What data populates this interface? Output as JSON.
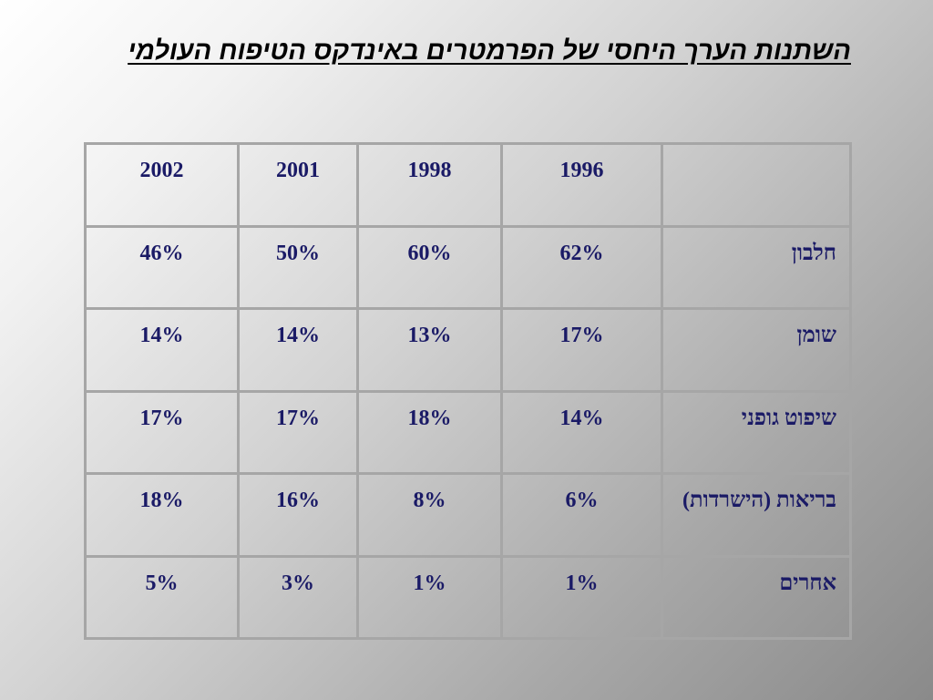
{
  "title": "השתנות הערך היחסי של הפרמטרים באינדקס הטיפוח העולמי",
  "table": {
    "headers": [
      "2002",
      "2001",
      "1998",
      "1996",
      ""
    ],
    "rows": [
      {
        "label": "חלבון",
        "values": [
          "46%",
          "50%",
          "60%",
          "62%"
        ]
      },
      {
        "label": "שומן",
        "values": [
          "14%",
          "14%",
          "13%",
          "17%"
        ]
      },
      {
        "label": "שיפוט גופני",
        "values": [
          "17%",
          "17%",
          "18%",
          "14%"
        ]
      },
      {
        "label": "בריאות (הישרדות)",
        "values": [
          "18%",
          "16%",
          "8%",
          "6%"
        ]
      },
      {
        "label": "אחרים",
        "values": [
          "5%",
          "3%",
          "1%",
          "1%"
        ]
      }
    ]
  },
  "colors": {
    "cell_text": "#1a1a66",
    "grid_line": "#a6a6a6",
    "title_text": "#000000"
  }
}
